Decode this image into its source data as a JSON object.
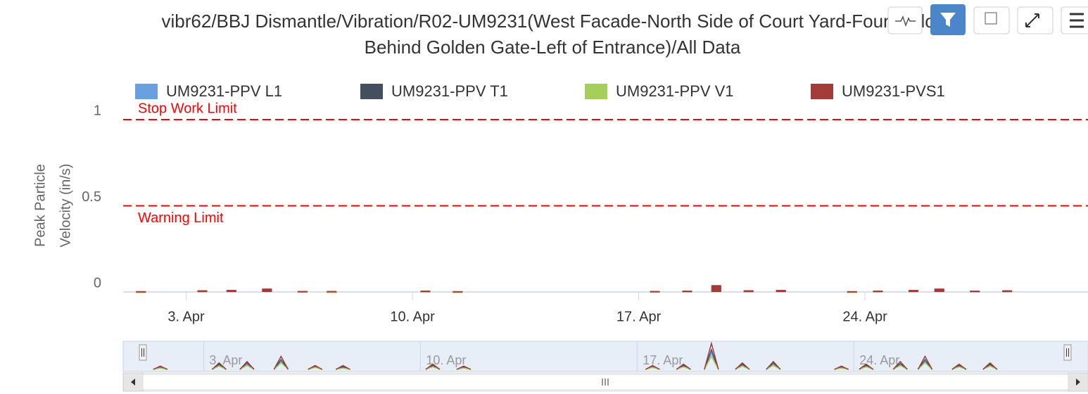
{
  "chart_data": {
    "type": "column",
    "title_lines": [
      "vibr62/BBJ Dismantle/Vibration/R02-UM9231(West Facade-North Side of Court Yard-Fourth Floor-",
      "Behind Golden Gate-Left of Entrance)/All Data"
    ],
    "ylabel_lines": [
      "Peak Particle",
      "Velocity (in/s)"
    ],
    "x": [
      1.6,
      3.5,
      4.4,
      5.5,
      6.6,
      7.5,
      10.4,
      11.4,
      17.5,
      18.5,
      19.4,
      20.4,
      21.4,
      23.6,
      24.4,
      25.5,
      26.3,
      27.4,
      28.4
    ],
    "series": [
      {
        "name": "UM9231-PPV L1",
        "color": "#6a9fe0",
        "values": [
          0.003,
          0.006,
          0.008,
          0.012,
          0.004,
          0.003,
          0.005,
          0.003,
          0.004,
          0.005,
          0.025,
          0.006,
          0.008,
          0.003,
          0.005,
          0.007,
          0.012,
          0.005,
          0.006
        ]
      },
      {
        "name": "UM9231-PPV T1",
        "color": "#434e5e",
        "values": [
          0.004,
          0.008,
          0.01,
          0.015,
          0.005,
          0.004,
          0.006,
          0.004,
          0.005,
          0.006,
          0.03,
          0.008,
          0.01,
          0.004,
          0.006,
          0.009,
          0.015,
          0.006,
          0.008
        ]
      },
      {
        "name": "UM9231-PPV V1",
        "color": "#a5cf5a",
        "values": [
          0.002,
          0.005,
          0.006,
          0.01,
          0.003,
          0.002,
          0.004,
          0.002,
          0.003,
          0.004,
          0.02,
          0.005,
          0.006,
          0.002,
          0.004,
          0.006,
          0.01,
          0.004,
          0.005
        ]
      },
      {
        "name": "UM9231-PVS1",
        "color": "#a33b3b",
        "values": [
          0.005,
          0.01,
          0.012,
          0.02,
          0.006,
          0.006,
          0.008,
          0.005,
          0.006,
          0.008,
          0.04,
          0.01,
          0.012,
          0.005,
          0.008,
          0.012,
          0.02,
          0.008,
          0.01
        ]
      }
    ],
    "xlim": [
      1.05,
      30.9
    ],
    "xticks": [
      {
        "value": 3,
        "label": "3. Apr"
      },
      {
        "value": 10,
        "label": "10. Apr"
      },
      {
        "value": 17,
        "label": "17. Apr"
      },
      {
        "value": 24,
        "label": "24. Apr"
      }
    ],
    "ylim": [
      0,
      1.0
    ],
    "yticks": [
      0,
      0.5,
      1
    ],
    "plot_lines": [
      {
        "value": 1,
        "label": "Stop Work Limit",
        "color": "#ff0000"
      },
      {
        "value": 0.5,
        "label": "Warning Limit",
        "color": "#ff0000"
      }
    ],
    "navigator_xlim": [
      0.4,
      31.2
    ],
    "legend": "top"
  }
}
